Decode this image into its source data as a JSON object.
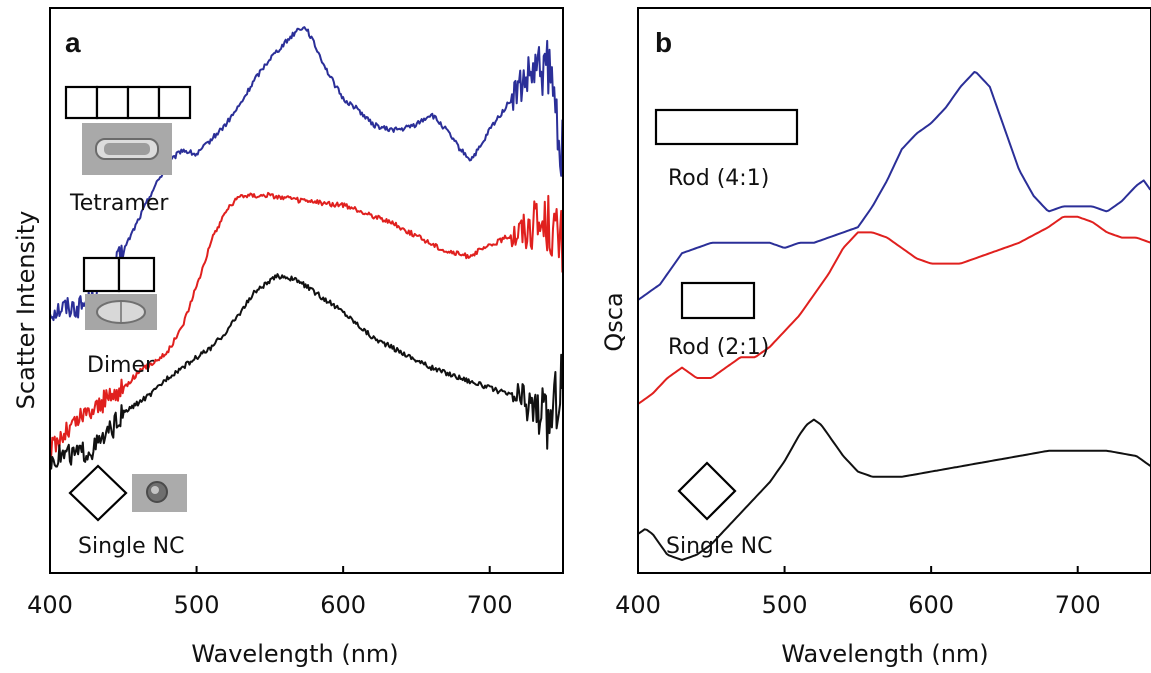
{
  "panels": [
    {
      "id": "a",
      "letter": "a",
      "ylabel": "Scatter Intensity",
      "xlabel": "Wavelength (nm)",
      "xticks": [
        "400",
        "500",
        "600",
        "700"
      ],
      "annotations": [
        "Tetramer",
        "Dimer",
        "Single NC"
      ]
    },
    {
      "id": "b",
      "letter": "b",
      "ylabel": "Qsca",
      "xlabel": "Wavelength (nm)",
      "xticks": [
        "400",
        "500",
        "600",
        "700"
      ],
      "annotations": [
        "Rod (4:1)",
        "Rod (2:1)",
        "Single NC"
      ]
    }
  ],
  "chart_data": [
    {
      "type": "line",
      "panel": "a",
      "xlabel": "Wavelength (nm)",
      "ylabel": "Scatter Intensity",
      "xlim": [
        400,
        750
      ],
      "ylim": [
        0,
        1
      ],
      "grid": false,
      "yticks_shown": false,
      "series": [
        {
          "name": "Tetramer",
          "color": "#2b2f98",
          "noisy": true,
          "x": [
            400,
            410,
            420,
            430,
            440,
            450,
            460,
            470,
            480,
            490,
            500,
            510,
            520,
            530,
            540,
            550,
            560,
            570,
            575,
            580,
            590,
            600,
            610,
            620,
            630,
            640,
            650,
            660,
            670,
            680,
            687,
            695,
            700,
            710,
            720,
            730,
            740,
            750
          ],
          "y": [
            0.44,
            0.45,
            0.45,
            0.47,
            0.51,
            0.56,
            0.62,
            0.68,
            0.73,
            0.76,
            0.75,
            0.78,
            0.81,
            0.85,
            0.9,
            0.94,
            0.97,
            1.0,
            1.0,
            0.97,
            0.91,
            0.86,
            0.84,
            0.81,
            0.8,
            0.8,
            0.81,
            0.83,
            0.8,
            0.76,
            0.74,
            0.77,
            0.8,
            0.84,
            0.88,
            0.91,
            0.92,
            0.75
          ]
        },
        {
          "name": "Dimer",
          "color": "#e0201e",
          "noisy": true,
          "x": [
            400,
            410,
            420,
            430,
            440,
            450,
            460,
            470,
            480,
            490,
            500,
            510,
            520,
            530,
            550,
            570,
            600,
            630,
            650,
            670,
            685,
            700,
            720,
            740,
            750
          ],
          "y": [
            0.17,
            0.2,
            0.23,
            0.25,
            0.27,
            0.29,
            0.32,
            0.34,
            0.36,
            0.41,
            0.49,
            0.58,
            0.64,
            0.67,
            0.67,
            0.66,
            0.65,
            0.62,
            0.59,
            0.56,
            0.55,
            0.57,
            0.6,
            0.62,
            0.57
          ]
        },
        {
          "name": "Single NC",
          "color": "#111111",
          "noisy": true,
          "x": [
            400,
            410,
            420,
            430,
            440,
            450,
            460,
            470,
            480,
            490,
            500,
            510,
            520,
            530,
            540,
            550,
            555,
            560,
            570,
            580,
            590,
            600,
            620,
            640,
            660,
            680,
            700,
            720,
            735,
            740,
            750
          ],
          "y": [
            0.15,
            0.16,
            0.16,
            0.17,
            0.2,
            0.24,
            0.26,
            0.28,
            0.31,
            0.33,
            0.35,
            0.37,
            0.4,
            0.44,
            0.48,
            0.5,
            0.51,
            0.51,
            0.5,
            0.48,
            0.46,
            0.44,
            0.39,
            0.36,
            0.33,
            0.31,
            0.29,
            0.27,
            0.24,
            0.22,
            0.32
          ]
        }
      ]
    },
    {
      "type": "line",
      "panel": "b",
      "xlabel": "Wavelength (nm)",
      "ylabel": "Qsca",
      "xlim": [
        400,
        750
      ],
      "ylim": [
        0,
        1
      ],
      "grid": false,
      "yticks_shown": false,
      "series": [
        {
          "name": "Rod (4:1)",
          "color": "#2b2f98",
          "noisy": false,
          "x": [
            400,
            415,
            425,
            430,
            440,
            450,
            460,
            475,
            490,
            500,
            510,
            520,
            530,
            550,
            560,
            570,
            580,
            590,
            600,
            610,
            620,
            630,
            640,
            650,
            660,
            670,
            680,
            690,
            700,
            710,
            720,
            730,
            740,
            745,
            750
          ],
          "y": [
            0.5,
            0.53,
            0.57,
            0.59,
            0.6,
            0.61,
            0.61,
            0.61,
            0.61,
            0.6,
            0.61,
            0.61,
            0.62,
            0.64,
            0.68,
            0.73,
            0.79,
            0.82,
            0.84,
            0.87,
            0.91,
            0.94,
            0.91,
            0.83,
            0.75,
            0.7,
            0.67,
            0.68,
            0.68,
            0.68,
            0.67,
            0.69,
            0.72,
            0.73,
            0.71
          ]
        },
        {
          "name": "Rod (2:1)",
          "color": "#e0201e",
          "noisy": false,
          "x": [
            400,
            410,
            420,
            430,
            440,
            450,
            460,
            470,
            480,
            490,
            500,
            510,
            520,
            530,
            540,
            550,
            560,
            570,
            580,
            590,
            600,
            620,
            640,
            660,
            680,
            690,
            700,
            710,
            720,
            730,
            740,
            750
          ],
          "y": [
            0.3,
            0.32,
            0.35,
            0.37,
            0.35,
            0.35,
            0.37,
            0.39,
            0.39,
            0.41,
            0.44,
            0.47,
            0.51,
            0.55,
            0.6,
            0.63,
            0.63,
            0.62,
            0.6,
            0.58,
            0.57,
            0.57,
            0.59,
            0.61,
            0.64,
            0.66,
            0.66,
            0.65,
            0.63,
            0.62,
            0.62,
            0.61
          ]
        },
        {
          "name": "Single NC",
          "color": "#111111",
          "noisy": false,
          "x": [
            400,
            405,
            410,
            415,
            420,
            430,
            440,
            450,
            460,
            470,
            480,
            490,
            500,
            510,
            515,
            520,
            525,
            530,
            540,
            550,
            560,
            580,
            600,
            620,
            640,
            660,
            680,
            700,
            720,
            740,
            750
          ],
          "y": [
            0.05,
            0.06,
            0.05,
            0.03,
            0.01,
            0.0,
            0.01,
            0.03,
            0.06,
            0.09,
            0.12,
            0.15,
            0.19,
            0.24,
            0.26,
            0.27,
            0.26,
            0.24,
            0.2,
            0.17,
            0.16,
            0.16,
            0.17,
            0.18,
            0.19,
            0.2,
            0.21,
            0.21,
            0.21,
            0.2,
            0.18
          ]
        }
      ]
    }
  ]
}
